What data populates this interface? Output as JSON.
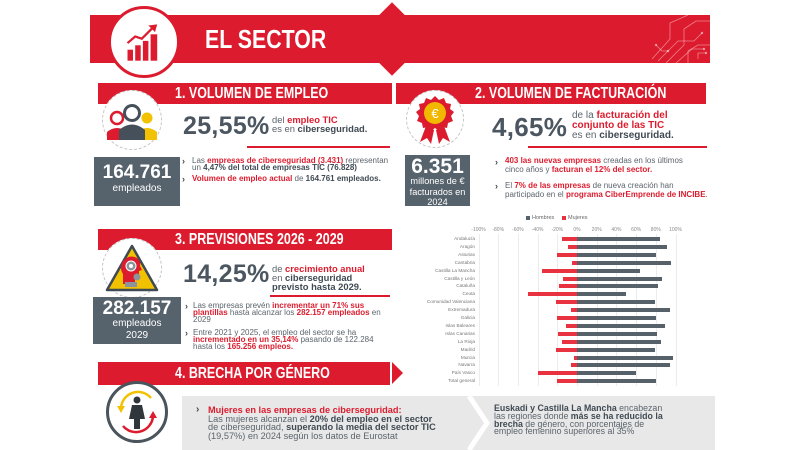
{
  "header": {
    "title": "EL SECTOR",
    "icon": "growth-chart-icon",
    "accent_color": "#dc1c2e"
  },
  "sections": {
    "employment": {
      "title": "1. VOLUMEN DE EMPLEO",
      "icon": "people-icon",
      "stat": "25,55%",
      "stat_desc": [
        [
          "del ",
          ""
        ],
        [
          "empleo TIC",
          "r"
        ],
        [
          "\nes en ",
          ""
        ],
        [
          "ciberseguridad.",
          "b"
        ]
      ],
      "box_value": "164.761",
      "box_label": "empleados",
      "bullets": [
        [
          [
            "Las ",
            ""
          ],
          [
            "empresas de ciberseguridad (3.431)",
            "r"
          ],
          [
            " representan\nun ",
            ""
          ],
          [
            "4,47% del total de empresas TIC (76.828)",
            "b"
          ]
        ],
        [
          [
            "Volumen de empleo actual",
            "r"
          ],
          [
            " de ",
            ""
          ],
          [
            "164.761 empleados.",
            "b"
          ]
        ]
      ]
    },
    "revenue": {
      "title": "2. VOLUMEN DE FACTURACIÓN",
      "icon": "euro-rosette-icon",
      "stat": "4,65%",
      "stat_desc": [
        [
          "de la ",
          ""
        ],
        [
          "facturación del\nconjunto de las TIC",
          "r"
        ],
        [
          "\nes en ",
          ""
        ],
        [
          "ciberseguridad.",
          "b"
        ]
      ],
      "box_value": "6.351",
      "box_label_1": "millones de €",
      "box_label_2": "facturados en",
      "box_label_3": "2024",
      "bullets": [
        [
          [
            "403 las nuevas empresas",
            "r"
          ],
          [
            " creadas en los últimos\ncinco años y ",
            ""
          ],
          [
            "facturan el 12% del sector.",
            "r"
          ]
        ],
        [
          [
            "El ",
            ""
          ],
          [
            "7% de las empresas",
            "r"
          ],
          [
            " de nueva creación han\nparticipado en el ",
            ""
          ],
          [
            "programa CiberEmprende de INCIBE",
            "r"
          ],
          [
            ".",
            ""
          ]
        ]
      ]
    },
    "forecast": {
      "title": "3. PREVISIONES 2026  - 2029",
      "icon": "gear-head-warning-icon",
      "stat": "14,25%",
      "stat_desc": [
        [
          "de ",
          ""
        ],
        [
          "crecimiento anual",
          "r"
        ],
        [
          "\nen ",
          ""
        ],
        [
          "ciberseguridad\nprevisto hasta 2029.",
          "b"
        ]
      ],
      "box_value": "282.157",
      "box_label_1": "empleados",
      "box_label_2": "2029",
      "bullets": [
        [
          [
            "Las empresas prevén ",
            ""
          ],
          [
            "incrementar un 71% sus\nplantillas",
            "r"
          ],
          [
            " hasta alcanzar los ",
            ""
          ],
          [
            "282.157 empleados",
            "r"
          ],
          [
            " en\n2029",
            ""
          ]
        ],
        [
          [
            "Entre 2021 y 2025, el empleo del sector se ha\n",
            ""
          ],
          [
            "incrementado en un 35,14%",
            "r"
          ],
          [
            " pasando de 122.284\nhasta los ",
            ""
          ],
          [
            "165.256 empleos.",
            "r"
          ]
        ]
      ]
    },
    "gender": {
      "title": "4. BRECHA POR GÉNERO",
      "icon": "woman-cycle-icon",
      "panel_1_heading": "Mujeres en las empresas de ciberseguridad:",
      "panel_1_body": [
        [
          "Las mujeres alcanzan el ",
          ""
        ],
        [
          "20% del empleo en el sector",
          "b"
        ],
        [
          "\nde ciberseguridad, ",
          ""
        ],
        [
          "superando la media del sector TIC",
          "b"
        ],
        [
          "\n(19,57%) en 2024 según los datos de Eurostat",
          ""
        ]
      ],
      "panel_2_body": [
        [
          "Euskadi y Castilla La Mancha",
          "b"
        ],
        [
          " encabezan\nlas regiones donde ",
          ""
        ],
        [
          "más se ha reducido la\nbrecha",
          "b"
        ],
        [
          " de género, con porcentajes de\nempleo femenino superiores al 35%",
          ""
        ]
      ]
    }
  },
  "chart_data": {
    "type": "bar",
    "orientation": "horizontal",
    "title": "",
    "xlabel": "",
    "ylabel": "",
    "legend_position": "top",
    "grid": true,
    "xlim": [
      -100,
      100
    ],
    "x_ticks": [
      -100,
      -80,
      -60,
      -40,
      -20,
      0,
      20,
      40,
      60,
      80,
      100
    ],
    "x_tick_labels": [
      "-100%",
      "-80%",
      "-60%",
      "-40%",
      "-20%",
      "0%",
      "20%",
      "40%",
      "60%",
      "80%",
      "100%"
    ],
    "categories": [
      "Andalucía",
      "Aragón",
      "Asturias",
      "Cantabria",
      "Castilla La Mancha",
      "Castilla y León",
      "Cataluña",
      "Ceuta",
      "Comunidad Valenciana",
      "Extremadura",
      "Galicia",
      "Islas Baleares",
      "Islas Canarias",
      "La Rioja",
      "Madrid",
      "Murcia",
      "Navarra",
      "País Vasco",
      "Total general"
    ],
    "series": [
      {
        "name": "Hombres",
        "color": "#56616a",
        "values": [
          84,
          91,
          80,
          95,
          64,
          86,
          82,
          50,
          79,
          94,
          80,
          89,
          81,
          85,
          79,
          97,
          94,
          60,
          80
        ]
      },
      {
        "name": "Mujeres",
        "color": "#e8323f",
        "values": [
          -15,
          -9,
          -20,
          -5,
          -36,
          -14,
          -18,
          -50,
          -21,
          -6,
          -20,
          -11,
          -19,
          -15,
          -21,
          -3,
          -6,
          -40,
          -20
        ]
      }
    ]
  }
}
